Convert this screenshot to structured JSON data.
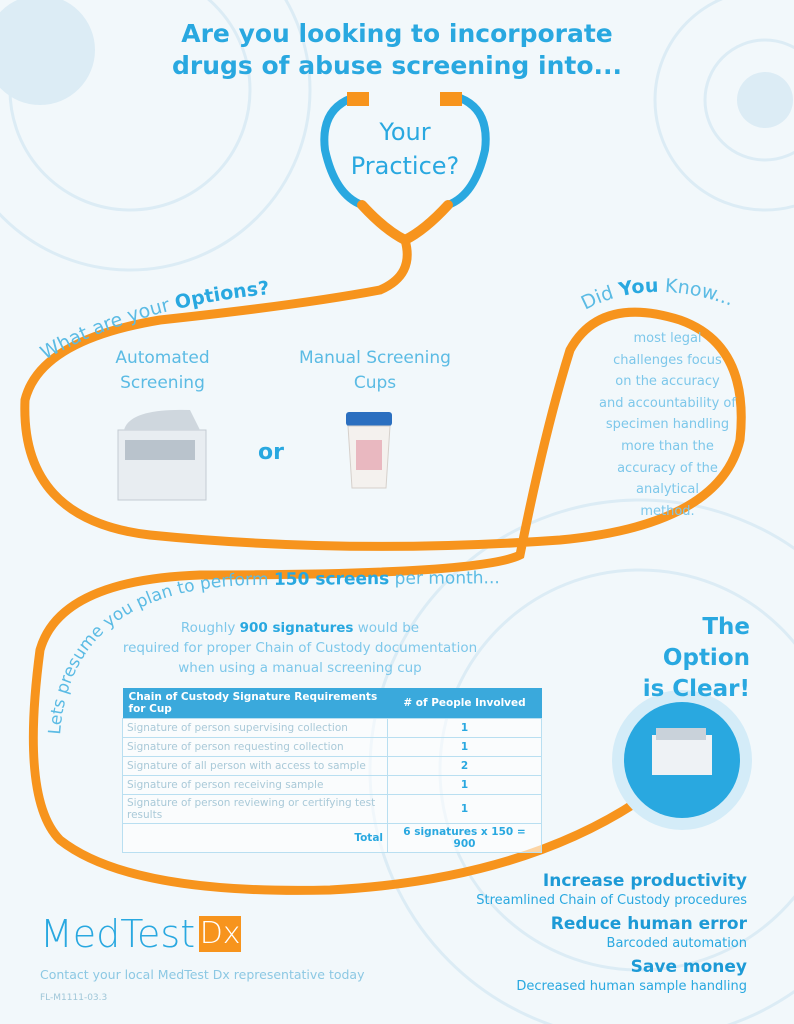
{
  "header": {
    "line1": "Are you looking to incorporate",
    "line2": "drugs of abuse screening into...",
    "practice1": "Your",
    "practice2": "Practice?"
  },
  "options": {
    "heading_prefix": "What are your ",
    "heading_bold": "Options?",
    "automated": {
      "line1": "Automated",
      "line2": "Screening"
    },
    "or": "or",
    "manual": {
      "line1": "Manual Screening",
      "line2": "Cups"
    }
  },
  "did_you_know": {
    "prefix": "Did ",
    "bold": "You",
    "suffix": " Know...",
    "text": [
      "most legal",
      "challenges focus",
      "on the accuracy",
      "and accountability of",
      "specimen handling",
      "more than the",
      "accuracy of the",
      "analytical",
      "method."
    ]
  },
  "presume": {
    "prefix": "Lets presume you plan to perform ",
    "bold": "150 screens",
    "suffix": " per month..."
  },
  "roughly": {
    "prefix": "Roughly ",
    "bold": "900 signatures",
    "suffix": " would be",
    "line2": "required for proper Chain of Custody documentation",
    "line3": "when using a manual screening cup"
  },
  "table": {
    "headers": [
      "Chain of Custody Signature Requirements for Cup",
      "# of People Involved"
    ],
    "rows": [
      [
        "Signature of person supervising collection",
        "1"
      ],
      [
        "Signature of person requesting collection",
        "1"
      ],
      [
        "Signature of all person with access to sample",
        "2"
      ],
      [
        "Signature of person receiving sample",
        "1"
      ],
      [
        "Signature of person reviewing or certifying test results",
        "1"
      ]
    ],
    "total_label": "Total",
    "total_value": "6 signatures x 150 = 900"
  },
  "clear": {
    "line1": "The",
    "line2": "Option",
    "line3": "is Clear!"
  },
  "benefits": [
    {
      "title": "Increase productivity",
      "sub": "Streamlined Chain of Custody procedures"
    },
    {
      "title": "Reduce human error",
      "sub": "Barcoded automation"
    },
    {
      "title": "Save money",
      "sub": "Decreased human sample handling"
    }
  ],
  "footer": {
    "logo_text": "MedTest",
    "logo_dx": "Dx",
    "contact": "Contact your local MedTest Dx representative today",
    "code": "FL-M1111-03.3"
  },
  "colors": {
    "blue": "#29a8e0",
    "orange": "#f7941d",
    "background": "#f2f8fb"
  }
}
